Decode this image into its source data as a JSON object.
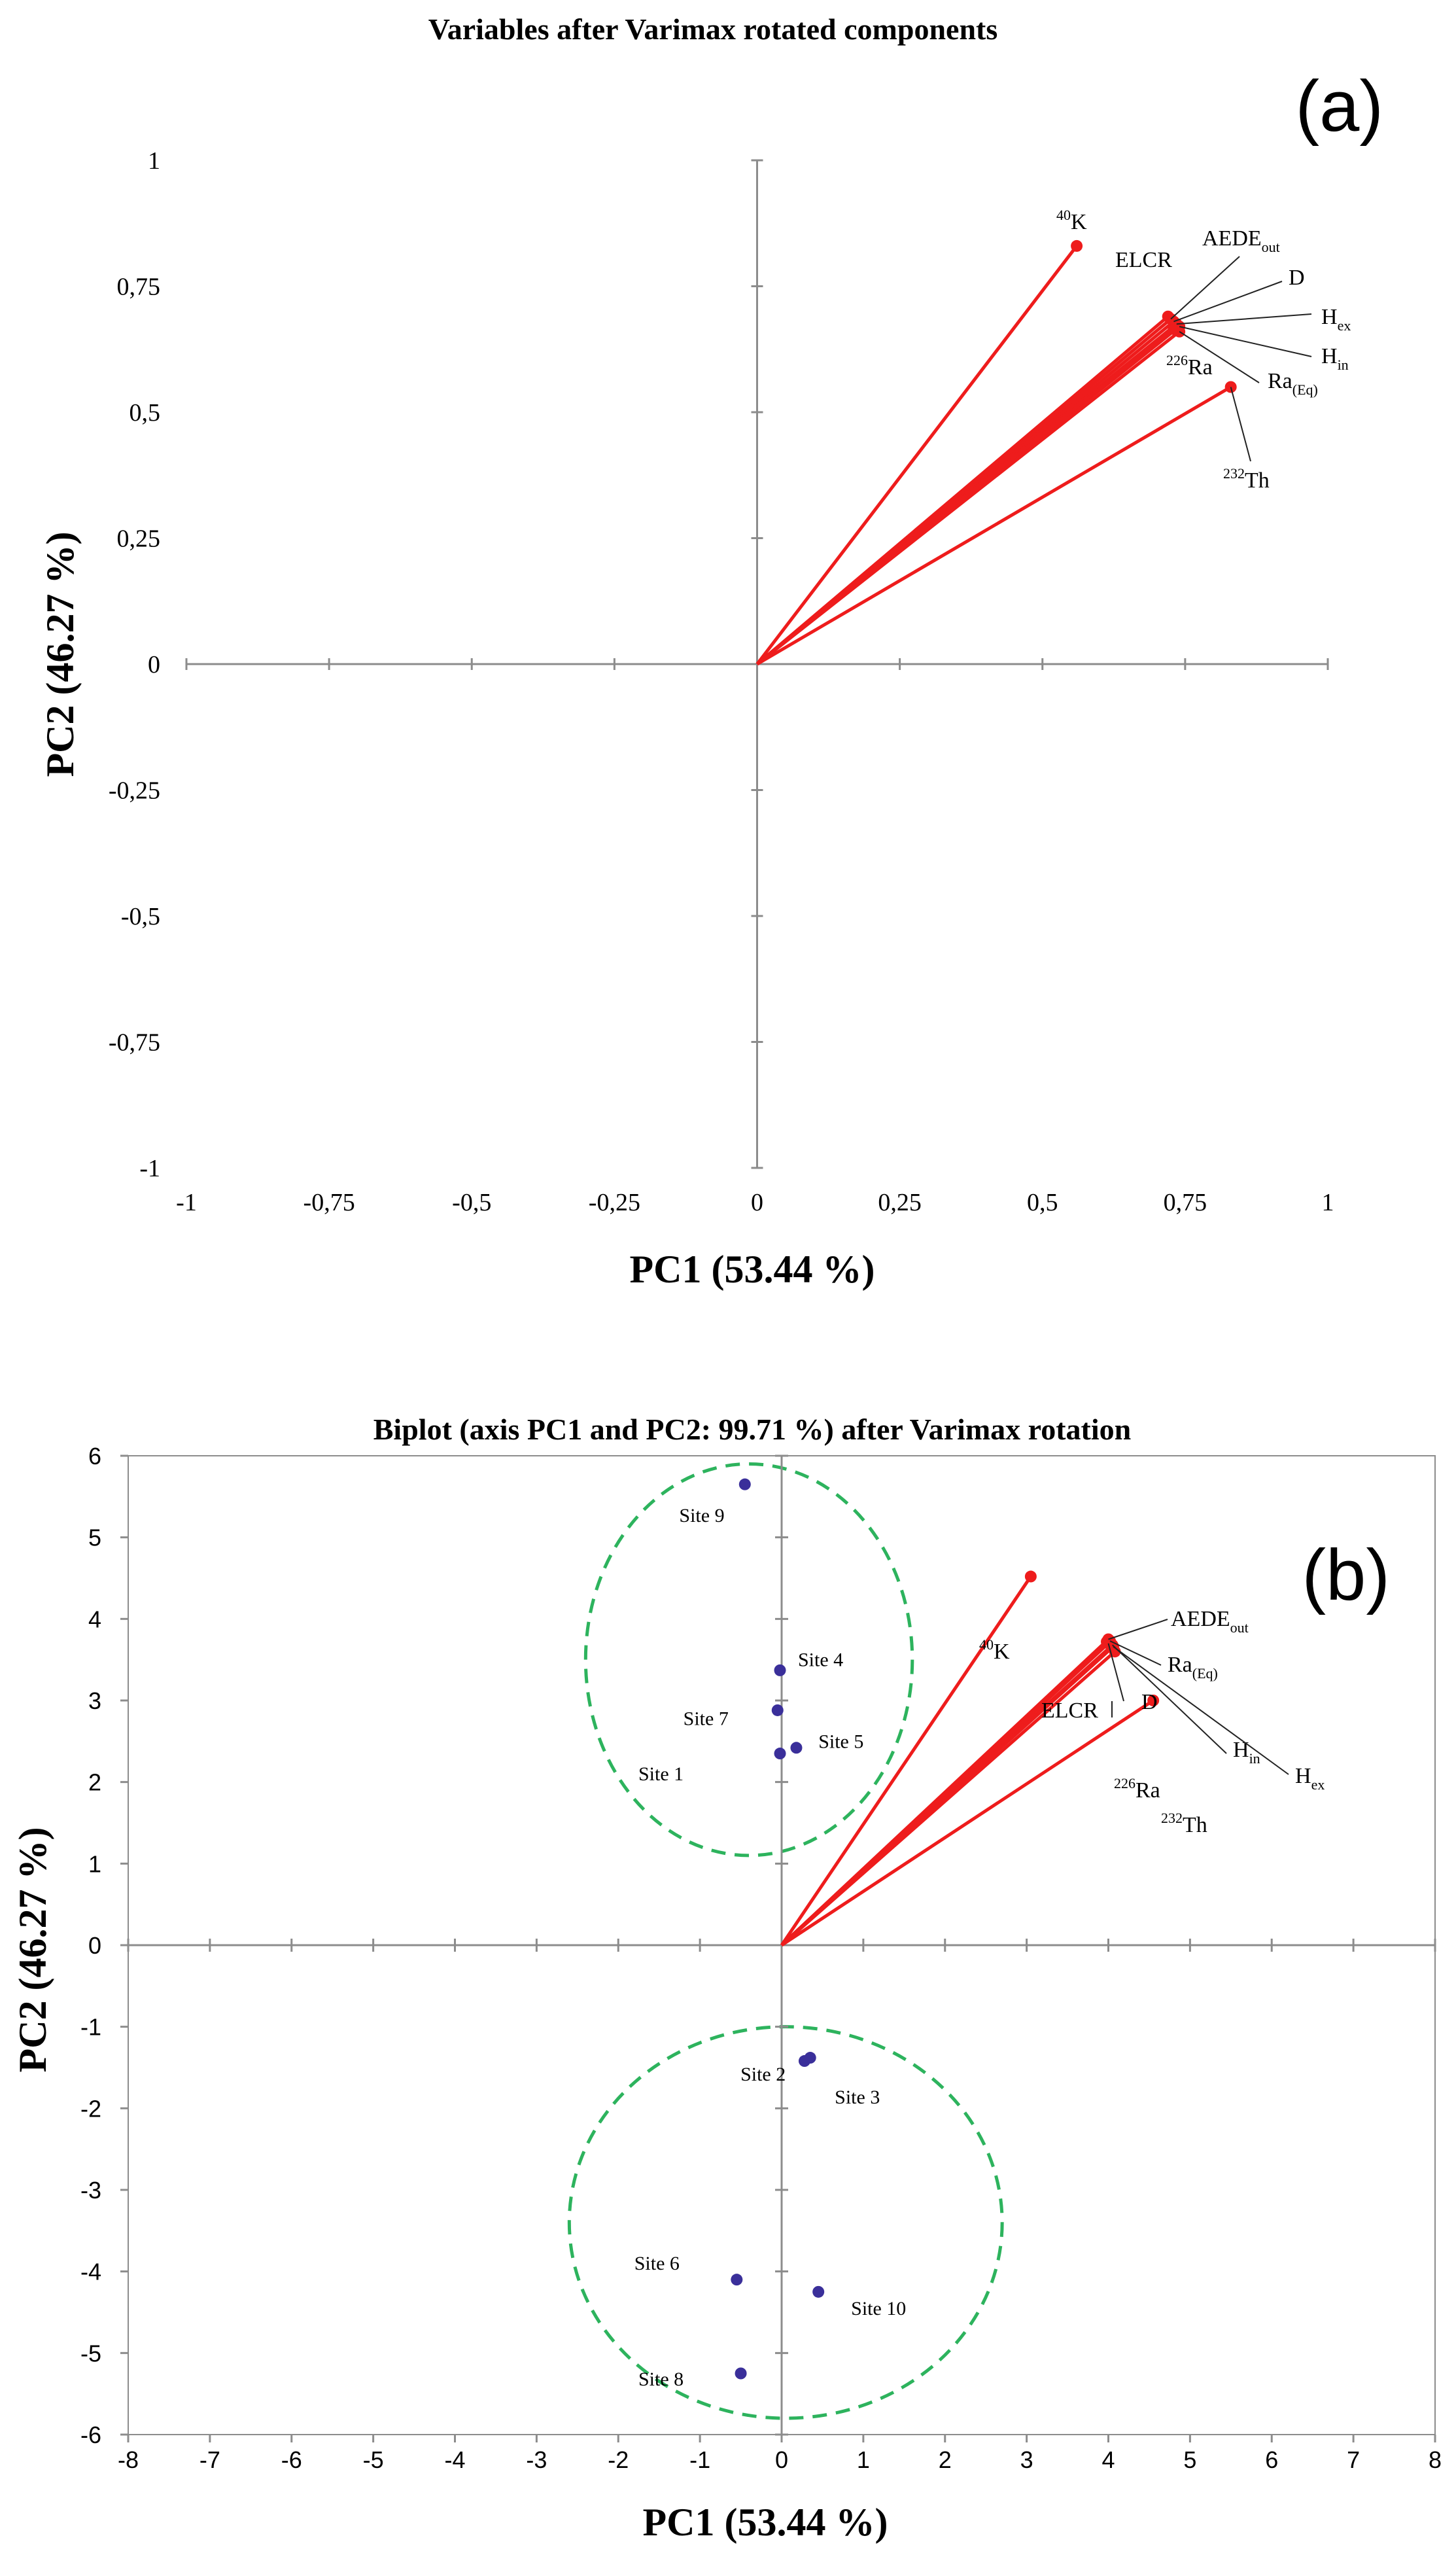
{
  "chart_data": [
    {
      "type": "scatter",
      "panel": "(a)",
      "title": "Variables after Varimax rotated components",
      "xlabel": "PC1 (53.44 %)",
      "ylabel": "PC2 (46.27 %)",
      "xlim": [
        -1,
        1
      ],
      "ylim": [
        -1,
        1
      ],
      "xticks": [
        "-1",
        "-0,75",
        "-0,5",
        "-0,25",
        "0",
        "0,25",
        "0,5",
        "0,75",
        "1"
      ],
      "yticks": [
        "1",
        "0,75",
        "0,5",
        "0,25",
        "0",
        "-0,25",
        "-0,5",
        "-0,75",
        "-1"
      ],
      "variables": [
        {
          "name": "40K",
          "sup": "40",
          "base": "K",
          "sub": "",
          "x": 0.56,
          "y": 0.83
        },
        {
          "name": "ELCR",
          "sup": "",
          "base": "ELCR",
          "sub": "",
          "x": 0.72,
          "y": 0.69
        },
        {
          "name": "AEDEout",
          "sup": "",
          "base": "AEDE",
          "sub": "out",
          "x": 0.725,
          "y": 0.685
        },
        {
          "name": "D",
          "sup": "",
          "base": "D",
          "sub": "",
          "x": 0.73,
          "y": 0.68
        },
        {
          "name": "Hex",
          "sup": "",
          "base": "H",
          "sub": "ex",
          "x": 0.735,
          "y": 0.675
        },
        {
          "name": "Hin",
          "sup": "",
          "base": "H",
          "sub": "in",
          "x": 0.74,
          "y": 0.67
        },
        {
          "name": "226Ra",
          "sup": "226",
          "base": "Ra",
          "sub": "",
          "x": 0.73,
          "y": 0.665
        },
        {
          "name": "Ra(Eq)",
          "sup": "",
          "base": "Ra",
          "sub": "(Eq)",
          "x": 0.74,
          "y": 0.66
        },
        {
          "name": "232Th",
          "sup": "232",
          "base": "Th",
          "sub": "",
          "x": 0.83,
          "y": 0.55
        }
      ]
    },
    {
      "type": "scatter",
      "panel": "(b)",
      "title": "Biplot (axis PC1 and PC2: 99.71 %) after Varimax rotation",
      "xlabel": "PC1 (53.44 %)",
      "ylabel": "PC2 (46.27 %)",
      "xlim": [
        -8,
        8
      ],
      "ylim": [
        -6,
        6
      ],
      "xticks": [
        "-8",
        "-7",
        "-6",
        "-5",
        "-4",
        "-3",
        "-2",
        "-1",
        "0",
        "1",
        "2",
        "3",
        "4",
        "5",
        "6",
        "7",
        "8"
      ],
      "yticks": [
        "6",
        "5",
        "4",
        "3",
        "2",
        "1",
        "0",
        "-1",
        "-2",
        "-3",
        "-4",
        "-5",
        "-6"
      ],
      "variables": [
        {
          "name": "40K",
          "sup": "40",
          "base": "K",
          "sub": "",
          "x": 3.05,
          "y": 4.52
        },
        {
          "name": "ELCR",
          "sup": "",
          "base": "ELCR",
          "sub": "",
          "x": 3.98,
          "y": 3.72
        },
        {
          "name": "AEDEout",
          "sup": "",
          "base": "AEDE",
          "sub": "out",
          "x": 4.0,
          "y": 3.75
        },
        {
          "name": "Ra(Eq)",
          "sup": "",
          "base": "Ra",
          "sub": "(Eq)",
          "x": 4.02,
          "y": 3.73
        },
        {
          "name": "D",
          "sup": "",
          "base": "D",
          "sub": "",
          "x": 4.0,
          "y": 3.7
        },
        {
          "name": "Hin",
          "sup": "",
          "base": "H",
          "sub": "in",
          "x": 4.05,
          "y": 3.68
        },
        {
          "name": "Hex",
          "sup": "",
          "base": "H",
          "sub": "ex",
          "x": 4.06,
          "y": 3.66
        },
        {
          "name": "226Ra",
          "sup": "226",
          "base": "Ra",
          "sub": "",
          "x": 4.08,
          "y": 3.6
        },
        {
          "name": "232Th",
          "sup": "232",
          "base": "Th",
          "sub": "",
          "x": 4.55,
          "y": 3.0
        }
      ],
      "sites": [
        {
          "name": "Site 1",
          "x": -0.02,
          "y": 2.35
        },
        {
          "name": "Site 2",
          "x": 0.28,
          "y": -1.42
        },
        {
          "name": "Site 3",
          "x": 0.35,
          "y": -1.38
        },
        {
          "name": "Site 4",
          "x": -0.02,
          "y": 3.37
        },
        {
          "name": "Site 5",
          "x": 0.18,
          "y": 2.42
        },
        {
          "name": "Site 6",
          "x": -0.55,
          "y": -4.1
        },
        {
          "name": "Site 7",
          "x": -0.05,
          "y": 2.88
        },
        {
          "name": "Site 8",
          "x": -0.5,
          "y": -5.25
        },
        {
          "name": "Site 9",
          "x": -0.45,
          "y": 5.65
        },
        {
          "name": "Site 10",
          "x": 0.45,
          "y": -4.25
        }
      ],
      "ellipses": [
        {
          "name": "upper-cluster",
          "cx": -0.4,
          "cy": 3.5,
          "rx": 2.0,
          "ry": 2.4
        },
        {
          "name": "lower-cluster",
          "cx": 0.05,
          "cy": -3.4,
          "rx": 2.65,
          "ry": 2.4
        }
      ]
    }
  ]
}
